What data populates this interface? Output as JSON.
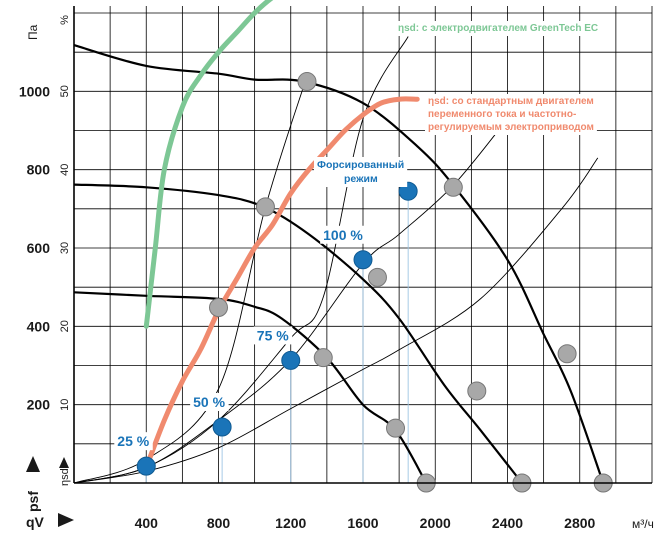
{
  "chart_data": {
    "type": "line",
    "x_ticks": [
      "400",
      "800",
      "1200",
      "1600",
      "2000",
      "2400",
      "2800"
    ],
    "xlim": [
      0,
      3200
    ],
    "pressure_ticks": [
      "200",
      "400",
      "600",
      "800",
      "1000"
    ],
    "pressure_lim": [
      0,
      1200
    ],
    "efficiency_ticks": [
      "10",
      "20",
      "30",
      "40",
      "50",
      "%"
    ],
    "efficiency_lim": [
      0,
      60
    ],
    "labels": {
      "x_axis": "qV",
      "x_unit": "м³/ч",
      "y_axis": "psf",
      "y_unit": "Па",
      "efficiency_axis": "ηsd"
    },
    "fan_curves": [
      {
        "name": "25 %",
        "points": [
          [
            0,
            487
          ],
          [
            400,
            478
          ],
          [
            800,
            470
          ],
          [
            1000,
            450
          ],
          [
            1150,
            420
          ],
          [
            1400,
            320
          ],
          [
            1600,
            200
          ],
          [
            1780,
            135
          ],
          [
            1950,
            0
          ]
        ]
      },
      {
        "name": "50 %",
        "points": [
          [
            0,
            762
          ],
          [
            400,
            755
          ],
          [
            800,
            735
          ],
          [
            1050,
            705
          ],
          [
            1300,
            635
          ],
          [
            1600,
            520
          ],
          [
            1800,
            420
          ],
          [
            2050,
            250
          ],
          [
            2250,
            135
          ],
          [
            2480,
            0
          ]
        ]
      },
      {
        "name": "75 %",
        "points": [
          [
            0,
            1118
          ],
          [
            400,
            1065
          ],
          [
            800,
            1045
          ],
          [
            1000,
            1030
          ],
          [
            1270,
            1025
          ],
          [
            1600,
            970
          ],
          [
            1900,
            860
          ],
          [
            2100,
            760
          ],
          [
            2400,
            570
          ],
          [
            2600,
            380
          ],
          [
            2750,
            235
          ],
          [
            2930,
            0
          ]
        ]
      }
    ],
    "system_curves": [
      {
        "points": [
          [
            0,
            0
          ],
          [
            400,
            60
          ],
          [
            800,
            240
          ],
          [
            1060,
            705
          ],
          [
            1280,
            1025
          ]
        ]
      },
      {
        "points": [
          [
            0,
            0
          ],
          [
            400,
            40
          ],
          [
            800,
            160
          ],
          [
            1200,
            370
          ],
          [
            1380,
            475
          ],
          [
            1600,
            930
          ],
          [
            1850,
            1140
          ]
        ]
      },
      {
        "points": [
          [
            0,
            0
          ],
          [
            400,
            40
          ],
          [
            800,
            160
          ],
          [
            1200,
            315
          ],
          [
            1600,
            560
          ],
          [
            1800,
            635
          ],
          [
            2100,
            760
          ],
          [
            2400,
            930
          ]
        ]
      },
      {
        "points": [
          [
            0,
            0
          ],
          [
            400,
            30
          ],
          [
            800,
            90
          ],
          [
            1200,
            190
          ],
          [
            1600,
            290
          ],
          [
            1800,
            340
          ],
          [
            2250,
            470
          ],
          [
            2700,
            700
          ],
          [
            2900,
            830
          ]
        ]
      }
    ],
    "efficiency_series": [
      {
        "name": "ηsd: с электродвигателем GreenTech EC",
        "color": "#7dc795",
        "points": [
          [
            400,
            20
          ],
          [
            450,
            30
          ],
          [
            500,
            40
          ],
          [
            600,
            48
          ],
          [
            700,
            52
          ],
          [
            800,
            55
          ],
          [
            900,
            57.5
          ],
          [
            1000,
            60
          ],
          [
            1100,
            62
          ],
          [
            1300,
            65
          ],
          [
            1500,
            67
          ],
          [
            1700,
            68.5
          ],
          [
            1900,
            69
          ]
        ]
      },
      {
        "name": "ηsd: со стандартным двигателем переменного тока и частотно-регулируемым электроприводом",
        "color": "#f08a6e",
        "points": [
          [
            400,
            2
          ],
          [
            500,
            8
          ],
          [
            600,
            13
          ],
          [
            700,
            17
          ],
          [
            800,
            22
          ],
          [
            900,
            26
          ],
          [
            1000,
            30
          ],
          [
            1100,
            33
          ],
          [
            1200,
            37
          ],
          [
            1300,
            40
          ],
          [
            1400,
            42.5
          ],
          [
            1500,
            45
          ],
          [
            1600,
            47
          ],
          [
            1700,
            48.5
          ],
          [
            1800,
            49
          ],
          [
            1900,
            49
          ]
        ]
      }
    ],
    "operating_points_blue": [
      {
        "label": "25 %",
        "x": 400,
        "y": 43
      },
      {
        "label": "50 %",
        "x": 820,
        "y": 143
      },
      {
        "label": "75 %",
        "x": 1200,
        "y": 313
      },
      {
        "label": "100 %",
        "x": 1600,
        "y": 570
      },
      {
        "label": "Форсированный режим",
        "x": 1850,
        "y": 745
      }
    ],
    "points_grey": [
      {
        "x": 800,
        "y": 448
      },
      {
        "x": 1060,
        "y": 705
      },
      {
        "x": 1290,
        "y": 1025
      },
      {
        "x": 1380,
        "y": 320
      },
      {
        "x": 1680,
        "y": 525
      },
      {
        "x": 2100,
        "y": 755
      },
      {
        "x": 1780,
        "y": 140
      },
      {
        "x": 2230,
        "y": 235
      },
      {
        "x": 2730,
        "y": 330
      },
      {
        "x": 1950,
        "y": 0
      },
      {
        "x": 2480,
        "y": 0
      },
      {
        "x": 2930,
        "y": 0
      }
    ],
    "annotations": {
      "ec": "ηsd: с электродвигателем GreenTech EC",
      "ac": [
        "ηsd: со стандартным двигателем",
        "переменного тока и частотно-",
        "регулируемым электроприводом"
      ],
      "boost": [
        "Форсированный",
        "режим"
      ]
    },
    "grid": true
  },
  "colors": {
    "ec": "#7dc795",
    "ac": "#f08a6e",
    "blue": "#1a74b8",
    "grey_point": "#a8a8a8",
    "drop_line": "#9dc4e3",
    "grid": "#000000"
  }
}
